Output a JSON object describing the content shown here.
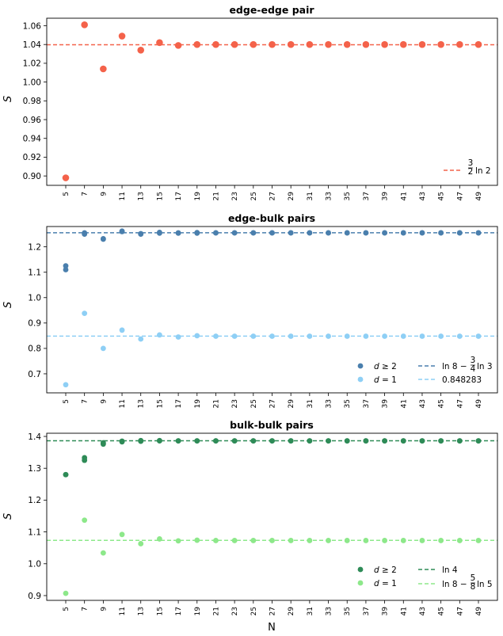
{
  "xlabel": "N",
  "chart_data": [
    {
      "type": "scatter",
      "title": "edge-edge pair",
      "ylabel": "S",
      "x": [
        5,
        7,
        9,
        11,
        13,
        15,
        17,
        19,
        21,
        23,
        25,
        27,
        29,
        31,
        33,
        35,
        37,
        39,
        41,
        43,
        45,
        47,
        49
      ],
      "ylim": [
        0.89,
        1.068
      ],
      "yticks": [
        0.9,
        0.92,
        0.94,
        0.96,
        0.98,
        1.0,
        1.02,
        1.04,
        1.06
      ],
      "grid": false,
      "series": [
        {
          "color": "#f4624a",
          "values": [
            0.898,
            1.061,
            1.014,
            1.049,
            1.034,
            1.042,
            1.039,
            1.04,
            1.04,
            1.04,
            1.04,
            1.04,
            1.04,
            1.04,
            1.04,
            1.04,
            1.04,
            1.04,
            1.04,
            1.04,
            1.04,
            1.04,
            1.04
          ]
        }
      ],
      "hlines": [
        {
          "name": "3/2 ln 2",
          "value": 1.0397,
          "color": "#f4624a"
        }
      ],
      "legend": "lower right"
    },
    {
      "type": "scatter",
      "title": "edge-bulk pairs",
      "ylabel": "S",
      "x": [
        5,
        7,
        9,
        11,
        13,
        15,
        17,
        19,
        21,
        23,
        25,
        27,
        29,
        31,
        33,
        35,
        37,
        39,
        41,
        43,
        45,
        47,
        49
      ],
      "ylim": [
        0.625,
        1.28
      ],
      "yticks": [
        0.7,
        0.8,
        0.9,
        1.0,
        1.1,
        1.2
      ],
      "grid": false,
      "series": [
        {
          "name": "d ≥ 2",
          "color": "#4a7fad",
          "values": [
            1.125,
            1.255,
            1.232,
            1.262,
            1.25,
            1.257,
            1.255,
            1.256,
            1.255,
            1.255,
            1.255,
            1.255,
            1.255,
            1.255,
            1.255,
            1.255,
            1.255,
            1.255,
            1.255,
            1.255,
            1.255,
            1.255,
            1.255
          ]
        },
        {
          "name": "d ≥ 2",
          "color": "#4a7fad",
          "values": [
            1.11,
            1.25,
            1.23,
            1.26,
            1.252,
            1.254,
            1.254,
            1.254,
            1.255,
            1.255,
            1.255,
            1.255,
            1.255,
            1.255,
            1.255,
            1.255,
            1.255,
            1.255,
            1.255,
            1.255,
            1.255,
            1.255,
            1.255
          ]
        },
        {
          "name": "d = 1",
          "color": "#8ecff5",
          "values": [
            0.657,
            0.938,
            0.8,
            0.872,
            0.837,
            0.853,
            0.845,
            0.85,
            0.848,
            0.848,
            0.848,
            0.848,
            0.848,
            0.848,
            0.848,
            0.848,
            0.848,
            0.848,
            0.848,
            0.848,
            0.848,
            0.848,
            0.848
          ]
        }
      ],
      "hlines": [
        {
          "name": "ln 8 − 3/4 ln 3",
          "value": 1.2555,
          "color": "#4a7fad"
        },
        {
          "name": "0.848283",
          "value": 0.848283,
          "color": "#8ecff5"
        }
      ],
      "legend": "lower right"
    },
    {
      "type": "scatter",
      "title": "bulk-bulk pairs",
      "ylabel": "S",
      "x": [
        5,
        7,
        9,
        11,
        13,
        15,
        17,
        19,
        21,
        23,
        25,
        27,
        29,
        31,
        33,
        35,
        37,
        39,
        41,
        43,
        45,
        47,
        49
      ],
      "ylim": [
        0.885,
        1.41
      ],
      "yticks": [
        0.9,
        1.0,
        1.1,
        1.2,
        1.3,
        1.4
      ],
      "grid": false,
      "series": [
        {
          "name": "d ≥ 2",
          "color": "#2e8b57",
          "values": [
            1.28,
            1.333,
            1.38,
            1.385,
            1.387,
            1.386,
            1.386,
            1.386,
            1.386,
            1.386,
            1.386,
            1.386,
            1.386,
            1.386,
            1.386,
            1.386,
            1.386,
            1.386,
            1.386,
            1.386,
            1.386,
            1.386,
            1.386
          ]
        },
        {
          "name": "d ≥ 2",
          "color": "#2e8b57",
          "values": [
            1.28,
            1.325,
            1.376,
            1.383,
            1.385,
            1.387,
            1.386,
            1.386,
            1.386,
            1.386,
            1.386,
            1.386,
            1.386,
            1.386,
            1.386,
            1.386,
            1.386,
            1.386,
            1.386,
            1.386,
            1.386,
            1.386,
            1.386
          ]
        },
        {
          "name": "d = 1",
          "color": "#8de88a",
          "values": [
            0.907,
            1.137,
            1.034,
            1.092,
            1.063,
            1.078,
            1.072,
            1.074,
            1.073,
            1.073,
            1.073,
            1.073,
            1.073,
            1.073,
            1.073,
            1.073,
            1.073,
            1.073,
            1.073,
            1.073,
            1.073,
            1.073,
            1.073
          ]
        }
      ],
      "hlines": [
        {
          "name": "ln 4",
          "value": 1.3863,
          "color": "#2e8b57"
        },
        {
          "name": "ln 8 − 5/8 ln 5",
          "value": 1.0735,
          "color": "#8de88a"
        }
      ],
      "legend": "lower right"
    }
  ]
}
